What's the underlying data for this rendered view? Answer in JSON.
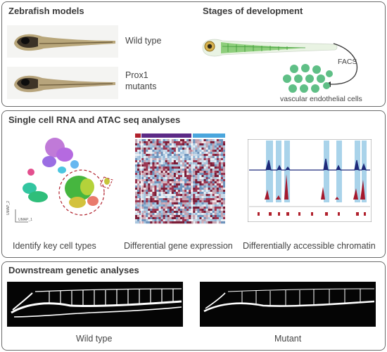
{
  "panel1": {
    "title": "Zebrafish models",
    "models": [
      {
        "label": "Wild type"
      },
      {
        "label_line1": "Prox1",
        "label_line2": "mutants"
      }
    ],
    "stages_title": "Stages of development",
    "facs_label": "FACS",
    "cells_label": "vascular endothelial cells"
  },
  "panel2": {
    "title": "Single cell RNA and ATAC seq analyses",
    "umap_xlabel": "UMAP_1",
    "umap_ylabel": "UMAP_2",
    "captions": [
      "Identify key cell types",
      "Differential gene expression",
      "Differentially accessible chromatin"
    ]
  },
  "panel3": {
    "title": "Downstream genetic analyses",
    "captions": [
      "Wild type",
      "Mutant"
    ]
  },
  "colors": {
    "frame": "#6b6b6b",
    "cell_green": "#5fbf86",
    "track_blue": "#1f2a7a",
    "track_red": "#a5192d",
    "highlight": "#a9d3ea",
    "heatmap_bar_purple": "#5c2a86",
    "heatmap_bar_blue": "#4aa6dd",
    "heatmap_bar_red": "#b0202c"
  }
}
